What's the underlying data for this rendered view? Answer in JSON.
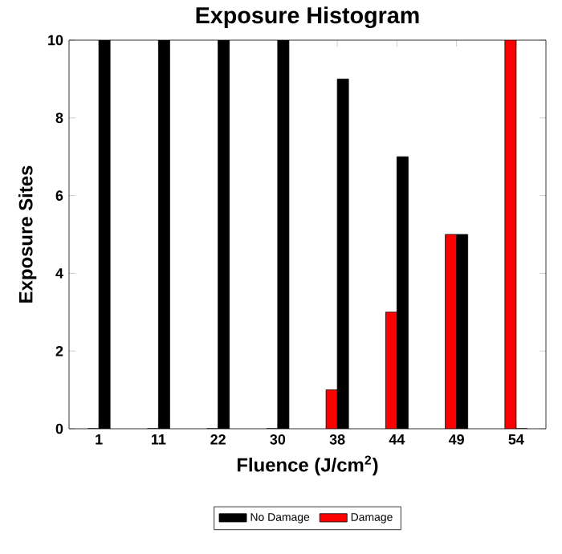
{
  "chart_data": {
    "type": "bar",
    "title": "Exposure Histogram",
    "xlabel": "Fluence (J/cm$^{2}$)",
    "ylabel": "Exposure Sites",
    "categories": [
      "1",
      "11",
      "22",
      "30",
      "38",
      "44",
      "49",
      "54"
    ],
    "series": [
      {
        "name": "No Damage",
        "color": "#000000",
        "values": [
          10,
          10,
          10,
          10,
          9,
          7,
          5,
          0
        ]
      },
      {
        "name": "Damage",
        "color": "#ff0000",
        "values": [
          0,
          0,
          0,
          0,
          1,
          3,
          5,
          10
        ]
      }
    ],
    "ylim": [
      0,
      10
    ],
    "yticks": [
      0,
      2,
      4,
      6,
      8,
      10
    ],
    "legend": "bottom"
  }
}
